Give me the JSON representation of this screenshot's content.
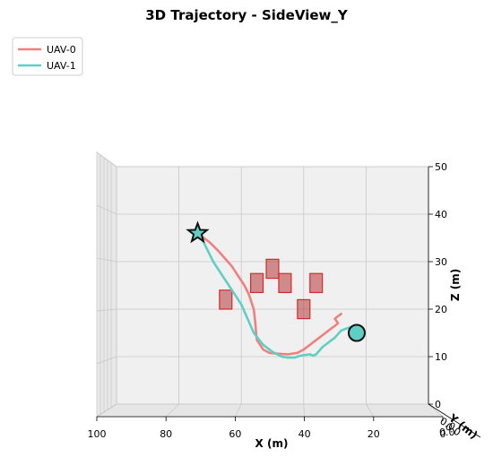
{
  "chart_data": {
    "type": "line",
    "title": "3D Trajectory - SideView_Y",
    "xlabel": "X (m)",
    "zlabel": "Z (m)",
    "xlim": [
      100,
      0
    ],
    "zlim": [
      0,
      50
    ],
    "x_ticks": [
      "100",
      "80",
      "60",
      "40",
      "20",
      "0"
    ],
    "z_ticks": [
      "0",
      "10",
      "20",
      "30",
      "40",
      "50"
    ],
    "grid": true,
    "legend_position": "top-left",
    "series": [
      {
        "name": "UAV-0",
        "color": "#f08080",
        "x": [
          74,
          72,
          70,
          67,
          63,
          61,
          59,
          57.5,
          56,
          55.5,
          55.2,
          55,
          53,
          51,
          48,
          45,
          42,
          40,
          38,
          35,
          32,
          30,
          29,
          30,
          29,
          28
        ],
        "z": [
          36,
          35,
          34,
          32,
          29,
          27,
          25,
          23,
          20,
          17,
          14.5,
          13.5,
          11.5,
          10.8,
          10.6,
          10.5,
          10.8,
          11.5,
          12.5,
          14,
          15.5,
          16.5,
          17,
          18,
          18.5,
          19
        ]
      },
      {
        "name": "UAV-1",
        "color": "#5fcfc4",
        "x": [
          74,
          72,
          69,
          66,
          63,
          60,
          58,
          56,
          53,
          50,
          47,
          45,
          43,
          41,
          38,
          37,
          36,
          34,
          32,
          30,
          28,
          26,
          24.5,
          23
        ],
        "z": [
          36,
          34,
          30,
          27,
          24,
          21,
          18,
          15,
          12.5,
          11,
          10,
          9.8,
          9.8,
          10.2,
          10.5,
          10.2,
          10.5,
          12,
          13,
          14,
          15.5,
          16,
          16.3,
          15
        ]
      }
    ],
    "start_marker": {
      "shape": "star",
      "x": 74,
      "z": 36,
      "color": "#5fcfc4"
    },
    "end_marker": {
      "shape": "circle",
      "x": 23,
      "z": 15,
      "color": "#5fcfc4"
    },
    "obstacles": [
      {
        "x": [
          67,
          63
        ],
        "z": [
          20,
          24
        ]
      },
      {
        "x": [
          57,
          53
        ],
        "z": [
          23.5,
          27.5
        ]
      },
      {
        "x": [
          52,
          48
        ],
        "z": [
          26.5,
          30.5
        ]
      },
      {
        "x": [
          48,
          44
        ],
        "z": [
          23.5,
          27.5
        ]
      },
      {
        "x": [
          42,
          38
        ],
        "z": [
          18,
          22
        ]
      },
      {
        "x": [
          38,
          34
        ],
        "z": [
          23.5,
          27.5
        ]
      }
    ],
    "obstacle_color": "#b5363a",
    "hidden_axis_tick_text": "0.0",
    "hidden_axis_label_text": "Y (m)"
  }
}
